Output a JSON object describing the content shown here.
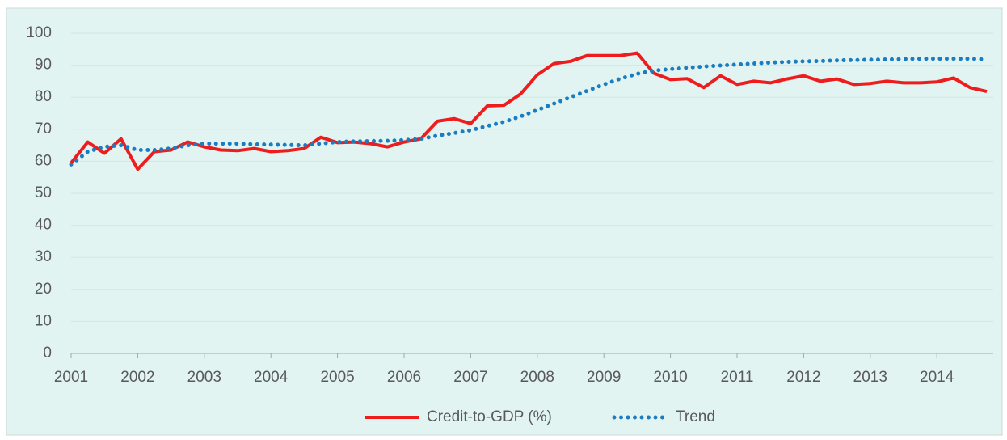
{
  "chart_data": {
    "type": "line",
    "x": [
      2001,
      2001.25,
      2001.5,
      2001.75,
      2002,
      2002.25,
      2002.5,
      2002.75,
      2003,
      2003.25,
      2003.5,
      2003.75,
      2004,
      2004.25,
      2004.5,
      2004.75,
      2005,
      2005.25,
      2005.5,
      2005.75,
      2006,
      2006.25,
      2006.5,
      2006.75,
      2007,
      2007.25,
      2007.5,
      2007.75,
      2008,
      2008.25,
      2008.5,
      2008.75,
      2009,
      2009.25,
      2009.5,
      2009.75,
      2010,
      2010.25,
      2010.5,
      2010.75,
      2011,
      2011.25,
      2011.5,
      2011.75,
      2012,
      2012.25,
      2012.5,
      2012.75,
      2013,
      2013.25,
      2013.5,
      2013.75,
      2014,
      2014.25,
      2014.5,
      2014.75
    ],
    "series": [
      {
        "name": "Credit-to-GDP (%)",
        "color": "#ee1c1c",
        "style": "solid",
        "values": [
          59.5,
          66,
          62.5,
          67,
          57.5,
          63,
          63.5,
          66,
          64.5,
          63.5,
          63.3,
          64,
          63,
          63.3,
          64,
          67.5,
          65.8,
          66,
          65.5,
          64.5,
          66,
          67,
          72.5,
          73.3,
          71.8,
          77.3,
          77.5,
          81,
          87,
          90.5,
          91.2,
          93,
          93,
          93,
          93.8,
          87.5,
          85.5,
          85.8,
          83,
          86.7,
          84,
          85,
          84.5,
          85.7,
          86.7,
          85,
          85.7,
          84,
          84.3,
          85,
          84.5,
          84.5,
          84.8,
          86,
          83,
          81.8
        ]
      },
      {
        "name": "Trend",
        "color": "#1a7cc1",
        "style": "dotted",
        "values": [
          59,
          63,
          64.5,
          65,
          63.5,
          63.5,
          64,
          65,
          65.5,
          65.5,
          65.5,
          65.3,
          65.2,
          65.1,
          65,
          65.5,
          66,
          66.2,
          66.3,
          66.4,
          66.6,
          67,
          68,
          68.8,
          69.7,
          71,
          72.3,
          74,
          76,
          78,
          80,
          82,
          84,
          85.8,
          87.3,
          88.3,
          88.8,
          89.2,
          89.6,
          89.9,
          90.2,
          90.5,
          90.8,
          91,
          91.2,
          91.3,
          91.5,
          91.6,
          91.7,
          91.8,
          91.9,
          92,
          92,
          92,
          92,
          91.8
        ]
      }
    ],
    "xlim": [
      2001,
      2014.75
    ],
    "xticks": [
      2001,
      2002,
      2003,
      2004,
      2005,
      2006,
      2007,
      2008,
      2009,
      2010,
      2011,
      2012,
      2013,
      2014
    ],
    "ylim": [
      0,
      100
    ],
    "yticks": [
      0,
      10,
      20,
      30,
      40,
      50,
      60,
      70,
      80,
      90,
      100
    ],
    "grid": true,
    "legend": "bottom"
  }
}
